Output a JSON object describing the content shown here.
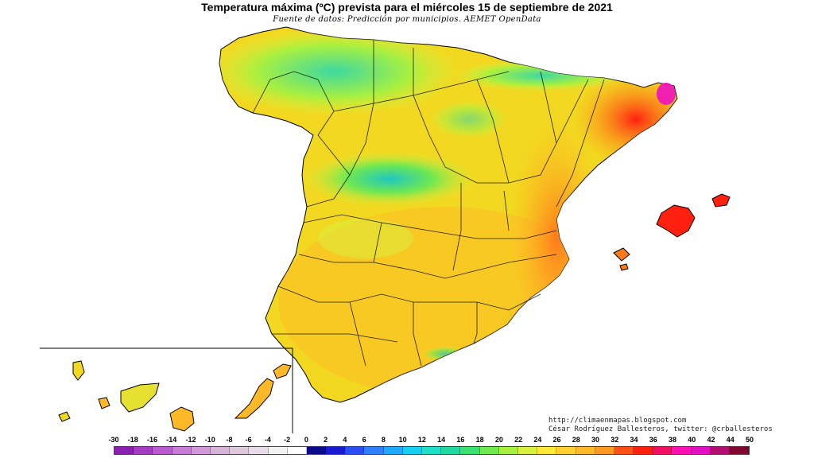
{
  "title": "Temperatura máxima (ºC) prevista para el miércoles 15 de septiembre de 2021",
  "subtitle": "Fuente de datos: Predicción por municipios. AEMET OpenData",
  "credits": {
    "blog": "http://climaenmapas.blogspot.com",
    "author": "César Rodríguez Ballesteros, twitter: @crballesteros"
  },
  "legend": {
    "labels": [
      "-30",
      "-18",
      "-16",
      "-14",
      "-12",
      "-10",
      "-8",
      "-6",
      "-4",
      "-2",
      "0",
      "2",
      "4",
      "6",
      "8",
      "10",
      "12",
      "14",
      "16",
      "18",
      "20",
      "22",
      "24",
      "26",
      "28",
      "30",
      "32",
      "34",
      "36",
      "38",
      "40",
      "42",
      "44",
      "50"
    ],
    "colors": [
      "#8a1fb0",
      "#a23cc0",
      "#b95ad0",
      "#c77ad6",
      "#d09ad8",
      "#d6b4d6",
      "#ddc8dc",
      "#e8dce8",
      "#f2f2f2",
      "#ffffff",
      "#0a0a8a",
      "#1a1ad0",
      "#2a4cf0",
      "#2f7fff",
      "#1faaff",
      "#15d0f0",
      "#1ee0c8",
      "#20d8a0",
      "#3ce070",
      "#70e850",
      "#a8f040",
      "#d8f040",
      "#ffe838",
      "#ffd030",
      "#ffb828",
      "#ff9820",
      "#ff5018",
      "#ff2010",
      "#f01060",
      "#ff10b0",
      "#e010c0",
      "#b01070",
      "#800830"
    ]
  },
  "map_regions": {
    "islands": "Islas Canarias inset",
    "baleares": "Islas Baleares"
  }
}
